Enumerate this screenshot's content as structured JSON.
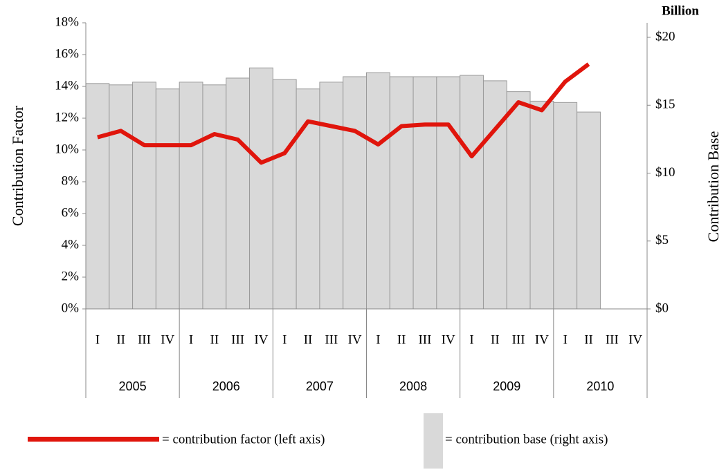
{
  "chart_data": {
    "type": "bar-line",
    "y_title": "Contribution Factor",
    "y2_title": "Contribution Base",
    "y2_unit": "Billion",
    "categories": [
      "I",
      "II",
      "III",
      "IV",
      "I",
      "II",
      "III",
      "IV",
      "I",
      "II",
      "III",
      "IV",
      "I",
      "II",
      "III",
      "IV",
      "I",
      "II",
      "III",
      "IV",
      "I",
      "II",
      "III",
      "IV"
    ],
    "groups": [
      "2005",
      "2006",
      "2007",
      "2008",
      "2009",
      "2010"
    ],
    "ylim": [
      0,
      18
    ],
    "yticks": [
      {
        "value": 0,
        "label": "0%"
      },
      {
        "value": 2,
        "label": "2%"
      },
      {
        "value": 4,
        "label": "4%"
      },
      {
        "value": 6,
        "label": "6%"
      },
      {
        "value": 8,
        "label": "8%"
      },
      {
        "value": 10,
        "label": "10%"
      },
      {
        "value": 12,
        "label": "12%"
      },
      {
        "value": 14,
        "label": "14%"
      },
      {
        "value": 16,
        "label": "16%"
      },
      {
        "value": 18,
        "label": "18%"
      }
    ],
    "y2lim": [
      0,
      21.07
    ],
    "y2ticks": [
      {
        "value": 0,
        "label": "$0"
      },
      {
        "value": 5,
        "label": "$5"
      },
      {
        "value": 10,
        "label": "$10"
      },
      {
        "value": 15,
        "label": "$15"
      },
      {
        "value": 20,
        "label": "$20"
      }
    ],
    "series": [
      {
        "name": "= contribution base (right axis)",
        "type": "bar",
        "axis": "y2",
        "color": "#d9d9d9",
        "values": [
          16.6,
          16.5,
          16.7,
          16.2,
          16.7,
          16.5,
          17.0,
          17.75,
          16.9,
          16.2,
          16.7,
          17.1,
          17.4,
          17.1,
          17.1,
          17.1,
          17.2,
          16.8,
          16.0,
          15.3,
          15.2,
          14.5,
          null,
          null
        ]
      },
      {
        "name": "= contribution factor (left axis)",
        "type": "line",
        "axis": "y",
        "color": "#e0150c",
        "values": [
          10.8,
          11.2,
          10.3,
          10.3,
          10.3,
          11.0,
          10.65,
          9.2,
          9.8,
          11.8,
          11.5,
          11.2,
          10.35,
          11.5,
          11.6,
          11.6,
          9.6,
          11.3,
          13.0,
          12.5,
          14.3,
          15.4,
          null,
          null
        ]
      }
    ]
  }
}
